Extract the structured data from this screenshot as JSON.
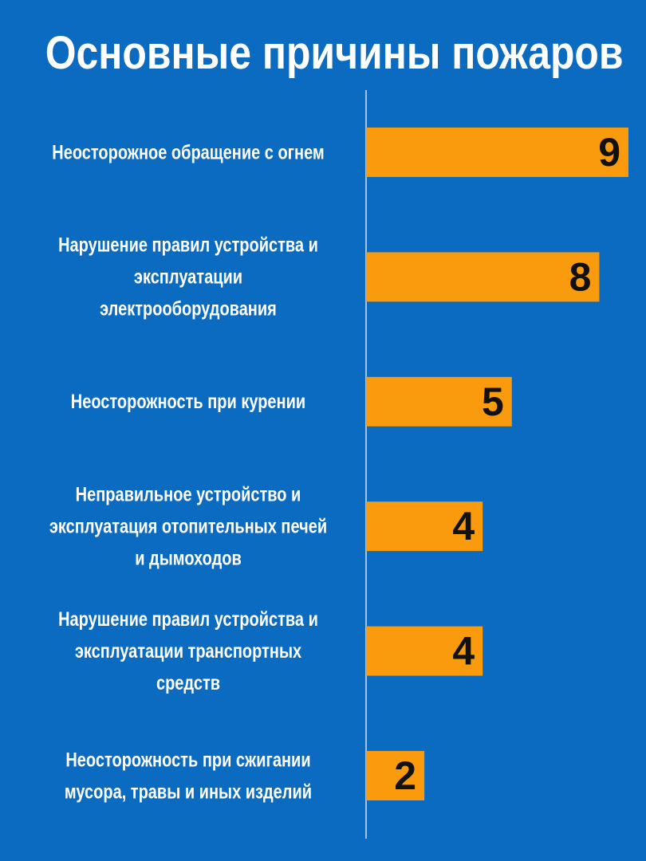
{
  "chart_data": {
    "type": "bar",
    "orientation": "horizontal",
    "title": "Основные причины пожаров",
    "categories": [
      "Неосторожное обращение с огнем",
      "Нарушение правил устройства и эксплуатации электрооборудования",
      "Неосторожность при курении",
      "Неправильное устройство и эксплуатация отопительных печей и дымоходов",
      "Нарушение правил устройства и эксплуатации транспортных средств",
      "Неосторожность при сжигании мусора, травы и иных изделий"
    ],
    "category_lines": [
      [
        "Неосторожное обращение с огнем"
      ],
      [
        "Нарушение правил устройства и",
        "эксплуатации",
        "электрооборудования"
      ],
      [
        "Неосторожность при курении"
      ],
      [
        "Неправильное устройство и",
        "эксплуатация отопительных печей",
        "и дымоходов"
      ],
      [
        "Нарушение правил устройства и",
        "эксплуатации транспортных",
        "средств"
      ],
      [
        "Неосторожность при сжигании",
        "мусора, травы и иных изделий"
      ]
    ],
    "values": [
      9,
      8,
      5,
      4,
      4,
      2
    ],
    "value_labels": [
      "9",
      "8",
      "5",
      "4",
      "4",
      "2"
    ],
    "xlim": [
      0,
      9
    ],
    "grid": false,
    "legend": "none",
    "colors": {
      "background": "#0a6bc0",
      "bar": "#f99b0c",
      "value_text": "#111111",
      "label_text": "#ffffff",
      "axis_line": "#ffffff"
    }
  }
}
